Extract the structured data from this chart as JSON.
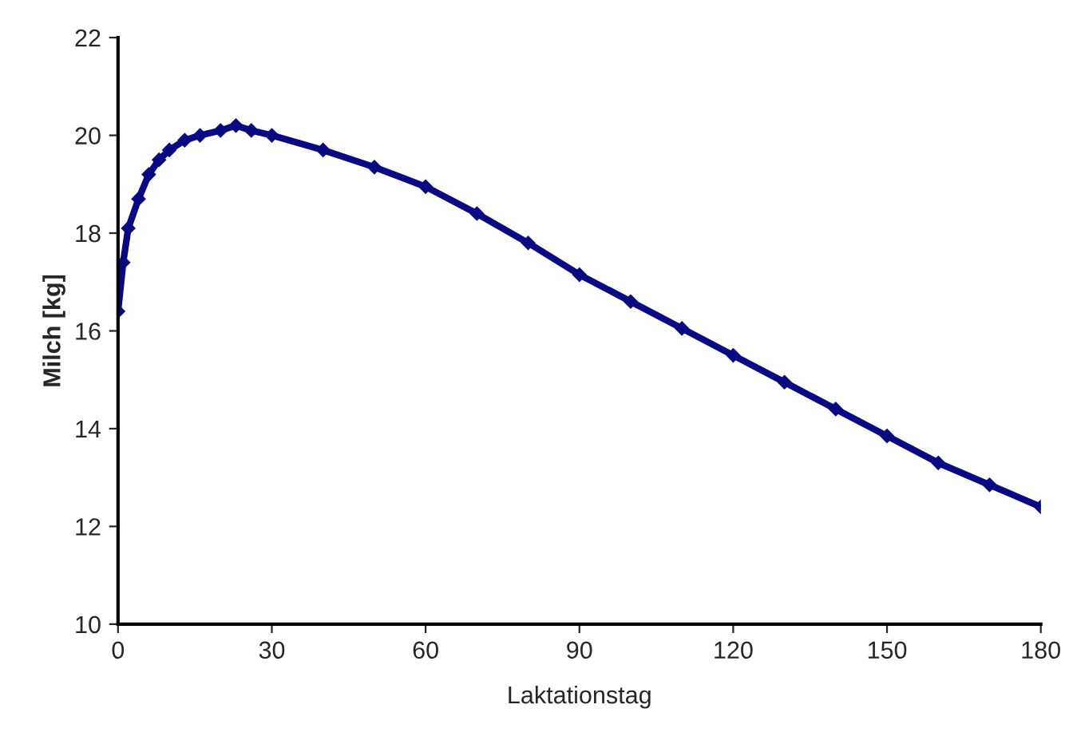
{
  "chart_data": {
    "type": "line",
    "xlabel": "Laktationstag",
    "ylabel": "Milch [kg]",
    "x": [
      0,
      1,
      2,
      4,
      6,
      8,
      10,
      13,
      16,
      20,
      23,
      26,
      30,
      40,
      50,
      60,
      70,
      80,
      90,
      100,
      110,
      120,
      130,
      140,
      150,
      160,
      170,
      180
    ],
    "series": [
      {
        "color": "#0a0a80",
        "values": [
          16.4,
          17.4,
          18.1,
          18.7,
          19.2,
          19.5,
          19.7,
          19.9,
          20.0,
          20.1,
          20.2,
          20.1,
          20.0,
          19.7,
          19.35,
          18.95,
          18.4,
          17.8,
          17.15,
          16.6,
          16.05,
          15.5,
          14.95,
          14.4,
          13.85,
          13.3,
          12.85,
          12.4
        ]
      }
    ],
    "xlim": [
      0,
      180
    ],
    "ylim": [
      10,
      22
    ],
    "xticks": [
      0,
      30,
      60,
      90,
      120,
      150,
      180
    ],
    "yticks": [
      10,
      12,
      14,
      16,
      18,
      20,
      22
    ],
    "marker": "diamond",
    "line_style": "solid",
    "grid": false,
    "legend": false
  }
}
